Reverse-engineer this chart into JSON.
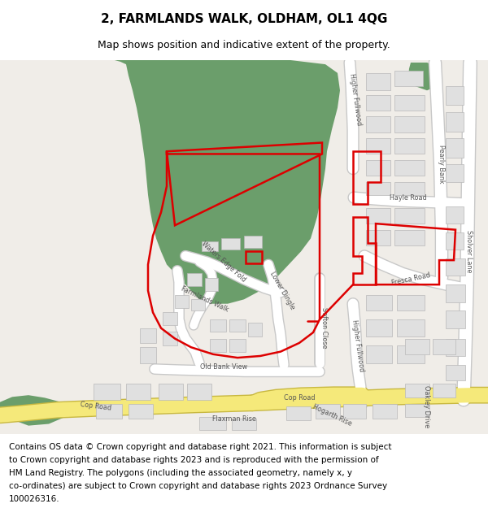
{
  "title": "2, FARMLANDS WALK, OLDHAM, OL1 4QG",
  "subtitle": "Map shows position and indicative extent of the property.",
  "footer_lines": [
    "Contains OS data © Crown copyright and database right 2021. This information is subject",
    "to Crown copyright and database rights 2023 and is reproduced with the permission of",
    "HM Land Registry. The polygons (including the associated geometry, namely x, y",
    "co-ordinates) are subject to Crown copyright and database rights 2023 Ordnance Survey",
    "100026316."
  ],
  "map_bg": "#f0ede8",
  "green_color": "#6b9e6b",
  "road_white": "#ffffff",
  "road_border": "#c8c8c8",
  "yellow_fill": "#f5e97a",
  "yellow_border": "#c8b840",
  "building_fill": "#e0e0e0",
  "building_border": "#b8b8b8",
  "red_color": "#dd0000",
  "title_fontsize": 11,
  "subtitle_fontsize": 9,
  "footer_fontsize": 7.5,
  "label_fontsize": 5.8,
  "label_color": "#555555"
}
